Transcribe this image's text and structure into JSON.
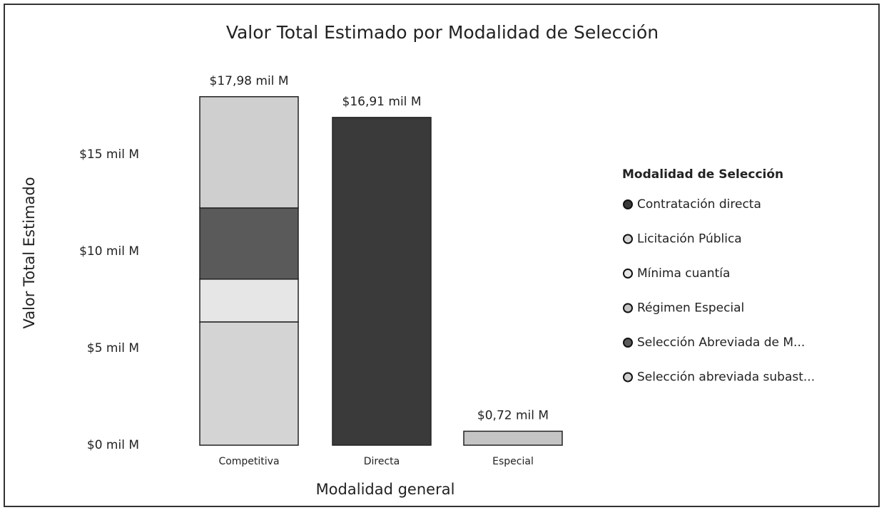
{
  "chart_data": {
    "type": "stacked_bar",
    "title": "Valor Total Estimado por Modalidad de Selección",
    "x_label": "Modalidad general",
    "y_label": "Valor Total Estimado",
    "legend_title": "Modalidad de Selección",
    "categories": [
      "Competitiva",
      "Directa",
      "Especial"
    ],
    "series": [
      {
        "name": "Contratación directa",
        "color": "#3a3a3a",
        "values": [
          null,
          16.91,
          null
        ]
      },
      {
        "name": "Licitación Pública",
        "color": "#d4d4d4",
        "values": [
          6.36,
          null,
          null
        ]
      },
      {
        "name": "Mínima cuantía",
        "color": "#e6e6e6",
        "values": [
          2.21,
          null,
          null
        ]
      },
      {
        "name": "Régimen Especial",
        "color": "#c4c4c4",
        "values": [
          null,
          null,
          0.72
        ]
      },
      {
        "name": "Selección Abreviada de M...",
        "color": "#5a5a5a",
        "values": [
          3.67,
          null,
          null
        ]
      },
      {
        "name": "Selección abreviada subast...",
        "color": "#cfcfcf",
        "values": [
          5.74,
          null,
          null
        ]
      }
    ],
    "totals": [
      17.98,
      16.91,
      0.72
    ],
    "total_labels": [
      "$17,98 mil M",
      "$16,91 mil M",
      "$0,72 mil M"
    ],
    "ylim": [
      0,
      19
    ],
    "yticks": [
      {
        "value": 0,
        "label": "$0 mil M"
      },
      {
        "value": 5,
        "label": "$5 mil M"
      },
      {
        "value": 10,
        "label": "$10 mil M"
      },
      {
        "value": 15,
        "label": "$15 mil M"
      }
    ],
    "legend_position": "right"
  }
}
